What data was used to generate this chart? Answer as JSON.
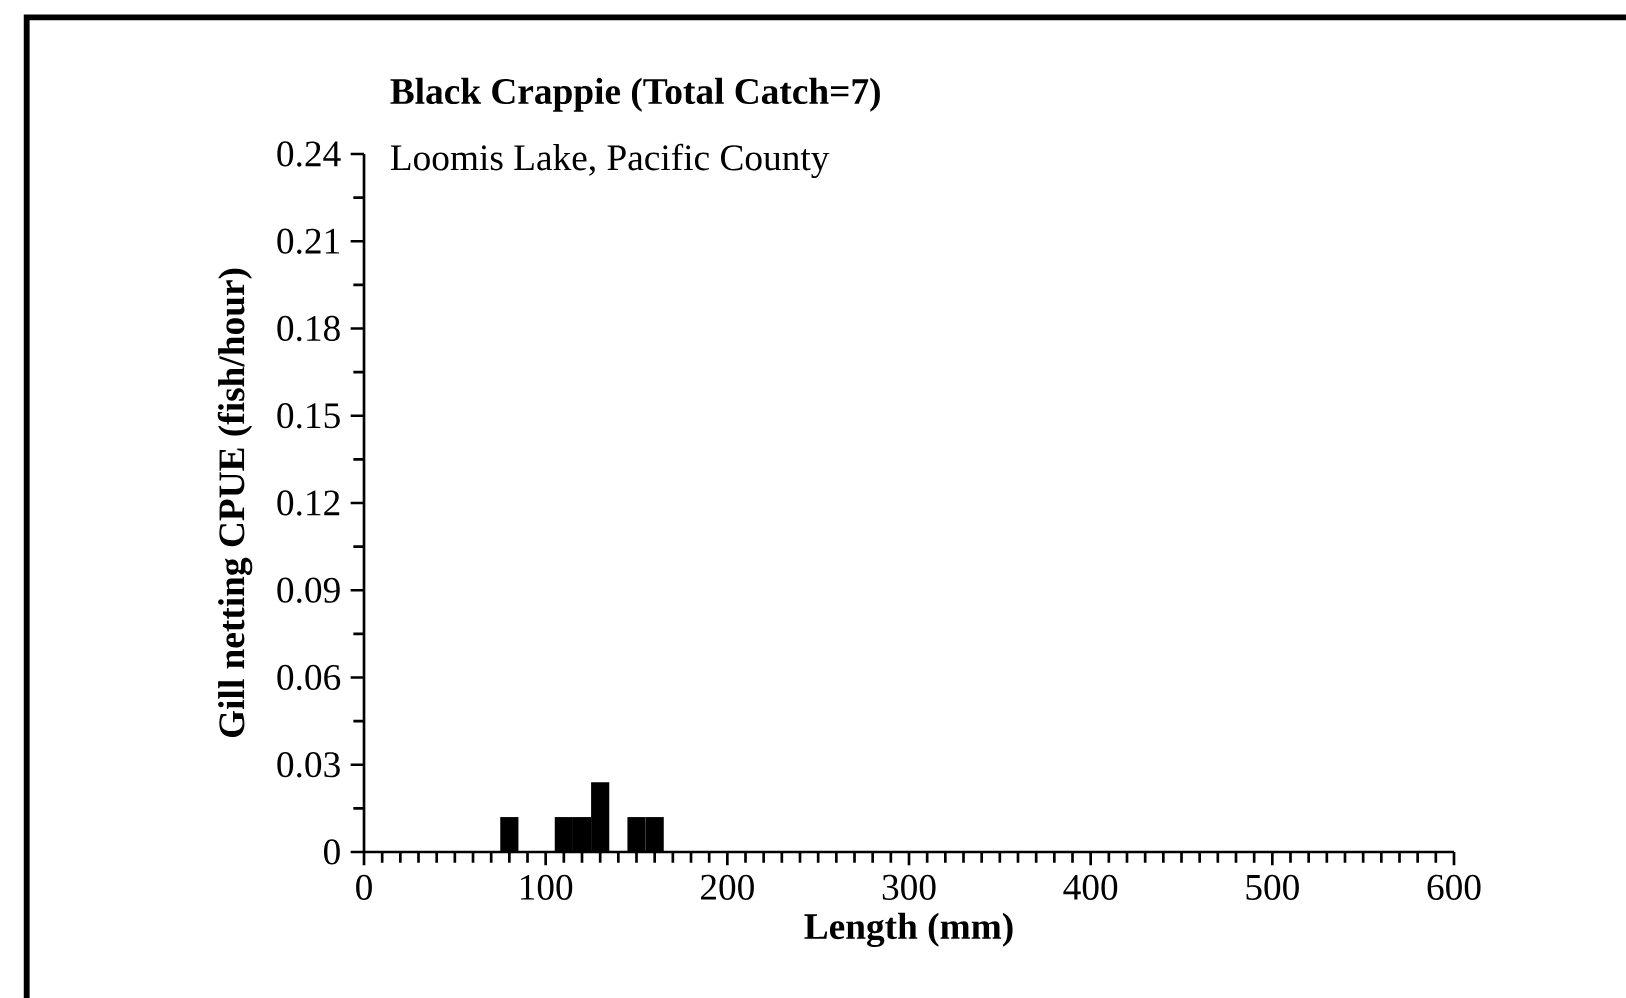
{
  "chart_data": {
    "type": "histogram",
    "title": "Black Crappie (Total Catch=7)",
    "subtitle": "Loomis Lake, Pacific County",
    "xlabel": "Length (mm)",
    "ylabel": "Gill netting CPUE (fish/hour)",
    "bins": [
      75,
      85,
      95,
      105,
      115,
      125,
      135,
      145,
      155,
      165
    ],
    "values": [
      0.012,
      0,
      0,
      0.012,
      0.012,
      0.024,
      0,
      0.012,
      0.012
    ],
    "color": "#000000",
    "xlim": [
      0,
      600
    ],
    "ylim": [
      0,
      0.24
    ],
    "xticks": [
      0,
      100,
      200,
      300,
      400,
      500,
      600
    ],
    "yticks": [
      0,
      0.03,
      0.06,
      0.09,
      0.12,
      0.15,
      0.18,
      0.21,
      0.24
    ],
    "grid": false
  }
}
